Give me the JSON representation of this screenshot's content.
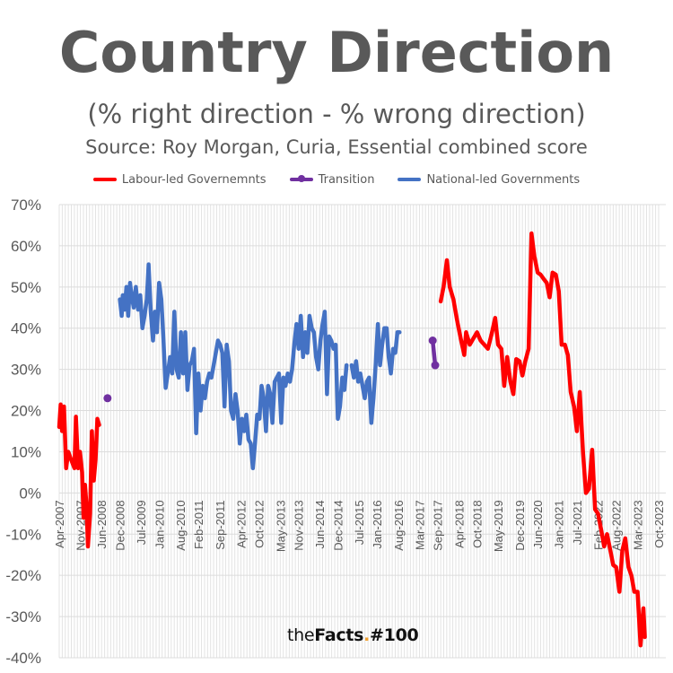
{
  "chart_data": {
    "type": "line",
    "title": "Country Direction",
    "subtitle": "(% right direction - % wrong direction)",
    "source": "Source: Roy Morgan, Curia, Essential combined score",
    "ylim": [
      -40,
      70
    ],
    "yticks": [
      -40,
      -30,
      -20,
      -10,
      0,
      10,
      20,
      30,
      40,
      50,
      60,
      70
    ],
    "ytick_labels": [
      "-40%",
      "-30%",
      "-20%",
      "-10%",
      "0%",
      "10%",
      "20%",
      "30%",
      "40%",
      "50%",
      "60%",
      "70%"
    ],
    "xticks": [
      "Apr-2007",
      "Nov-2007",
      "Jun-2008",
      "Dec-2008",
      "Jul-2009",
      "Jan-2010",
      "Aug-2010",
      "Feb-2011",
      "Sep-2011",
      "Apr-2012",
      "Oct-2012",
      "May-2013",
      "Nov-2013",
      "Jun-2014",
      "Dec-2014",
      "Jul-2015",
      "Jan-2016",
      "Aug-2016",
      "Mar-2017",
      "Sep-2017",
      "Apr-2018",
      "Oct-2018",
      "May-2019",
      "Dec-2019",
      "Jun-2020",
      "Jan-2021",
      "Jul-2021",
      "Feb-2022",
      "Aug-2022",
      "Mar-2023",
      "Oct-2023"
    ],
    "xtick_values": [
      2007.25,
      2007.833,
      2008.417,
      2008.917,
      2009.5,
      2010.0,
      2010.583,
      2011.083,
      2011.667,
      2012.25,
      2012.75,
      2013.333,
      2013.833,
      2014.417,
      2014.917,
      2015.5,
      2016.0,
      2016.583,
      2017.167,
      2017.667,
      2018.25,
      2018.75,
      2019.333,
      2019.917,
      2020.417,
      2021.0,
      2021.5,
      2022.083,
      2022.583,
      2023.167,
      2023.75
    ],
    "grid": true,
    "legend_position": "top",
    "series": [
      {
        "name": "Labour-led Governemnts",
        "color": "#ff0000",
        "marker": false,
        "points": [
          [
            2007.25,
            16
          ],
          [
            2007.29,
            21.5
          ],
          [
            2007.33,
            15
          ],
          [
            2007.38,
            21
          ],
          [
            2007.44,
            6
          ],
          [
            2007.5,
            10
          ],
          [
            2007.58,
            8
          ],
          [
            2007.67,
            6
          ],
          [
            2007.71,
            18.5
          ],
          [
            2007.77,
            6
          ],
          [
            2007.82,
            10
          ],
          [
            2007.88,
            5
          ],
          [
            2007.92,
            -6
          ],
          [
            2007.96,
            2
          ],
          [
            2008.0,
            -3
          ],
          [
            2008.04,
            -13
          ],
          [
            2008.1,
            -5
          ],
          [
            2008.15,
            15
          ],
          [
            2008.2,
            3
          ],
          [
            2008.25,
            8
          ],
          [
            2008.3,
            18
          ],
          [
            2008.35,
            16.5
          ]
        ]
      },
      {
        "name": "Labour-led Governemnts",
        "color": "#ff0000",
        "marker": false,
        "points": [
          [
            2017.75,
            46.5
          ],
          [
            2017.83,
            50
          ],
          [
            2017.92,
            56.5
          ],
          [
            2018.0,
            50
          ],
          [
            2018.1,
            47
          ],
          [
            2018.2,
            42
          ],
          [
            2018.3,
            37.5
          ],
          [
            2018.4,
            33.5
          ],
          [
            2018.45,
            39
          ],
          [
            2018.55,
            36
          ],
          [
            2018.65,
            37.5
          ],
          [
            2018.75,
            39
          ],
          [
            2018.85,
            37
          ],
          [
            2018.95,
            36
          ],
          [
            2019.05,
            35
          ],
          [
            2019.15,
            38.5
          ],
          [
            2019.25,
            42.5
          ],
          [
            2019.33,
            36
          ],
          [
            2019.42,
            35
          ],
          [
            2019.5,
            26
          ],
          [
            2019.58,
            33
          ],
          [
            2019.67,
            27
          ],
          [
            2019.75,
            24
          ],
          [
            2019.83,
            32.5
          ],
          [
            2019.92,
            32
          ],
          [
            2020.0,
            28.5
          ],
          [
            2020.08,
            32
          ],
          [
            2020.17,
            35
          ],
          [
            2020.25,
            63
          ],
          [
            2020.33,
            57.5
          ],
          [
            2020.42,
            53.5
          ],
          [
            2020.5,
            53
          ],
          [
            2020.58,
            52
          ],
          [
            2020.67,
            51
          ],
          [
            2020.75,
            47.5
          ],
          [
            2020.83,
            53.5
          ],
          [
            2020.92,
            53
          ],
          [
            2021.0,
            49
          ],
          [
            2021.08,
            36
          ],
          [
            2021.17,
            36
          ],
          [
            2021.25,
            33.5
          ],
          [
            2021.33,
            24.5
          ],
          [
            2021.42,
            21
          ],
          [
            2021.5,
            15
          ],
          [
            2021.58,
            24.5
          ],
          [
            2021.67,
            9.5
          ],
          [
            2021.75,
            0
          ],
          [
            2021.83,
            1
          ],
          [
            2021.92,
            10.5
          ],
          [
            2022.0,
            -4
          ],
          [
            2022.08,
            -5
          ],
          [
            2022.17,
            -9
          ],
          [
            2022.25,
            -13
          ],
          [
            2022.33,
            -10
          ],
          [
            2022.42,
            -14
          ],
          [
            2022.5,
            -17.5
          ],
          [
            2022.58,
            -18
          ],
          [
            2022.67,
            -24
          ],
          [
            2022.75,
            -14
          ],
          [
            2022.83,
            -11
          ],
          [
            2022.92,
            -18
          ],
          [
            2023.0,
            -20
          ],
          [
            2023.08,
            -24
          ],
          [
            2023.17,
            -24
          ],
          [
            2023.25,
            -37
          ],
          [
            2023.33,
            -28
          ],
          [
            2023.37,
            -35
          ]
        ]
      },
      {
        "name": "Transition",
        "color": "#7030a0",
        "marker": true,
        "points": [
          [
            2008.58,
            23
          ]
        ],
        "points2": [
          [
            2017.53,
            37
          ],
          [
            2017.6,
            31
          ]
        ]
      },
      {
        "name": "National-led Governments",
        "color": "#4472c4",
        "marker": false,
        "points": [
          [
            2008.92,
            47
          ],
          [
            2008.97,
            43
          ],
          [
            2009.0,
            48
          ],
          [
            2009.05,
            44.5
          ],
          [
            2009.1,
            50
          ],
          [
            2009.15,
            43
          ],
          [
            2009.2,
            51
          ],
          [
            2009.25,
            47.5
          ],
          [
            2009.3,
            45
          ],
          [
            2009.36,
            50
          ],
          [
            2009.42,
            44.5
          ],
          [
            2009.48,
            48
          ],
          [
            2009.54,
            40
          ],
          [
            2009.6,
            43
          ],
          [
            2009.66,
            47
          ],
          [
            2009.71,
            55.5
          ],
          [
            2009.77,
            44
          ],
          [
            2009.83,
            37
          ],
          [
            2009.88,
            44
          ],
          [
            2009.94,
            39
          ],
          [
            2010.0,
            51
          ],
          [
            2010.06,
            47
          ],
          [
            2010.12,
            37
          ],
          [
            2010.18,
            25.5
          ],
          [
            2010.24,
            29
          ],
          [
            2010.3,
            33
          ],
          [
            2010.36,
            29
          ],
          [
            2010.42,
            44
          ],
          [
            2010.48,
            30
          ],
          [
            2010.54,
            28
          ],
          [
            2010.6,
            39
          ],
          [
            2010.66,
            29
          ],
          [
            2010.72,
            39
          ],
          [
            2010.78,
            25
          ],
          [
            2010.84,
            31
          ],
          [
            2010.9,
            32
          ],
          [
            2010.96,
            35
          ],
          [
            2011.02,
            14.5
          ],
          [
            2011.08,
            29
          ],
          [
            2011.14,
            20
          ],
          [
            2011.2,
            26
          ],
          [
            2011.26,
            23
          ],
          [
            2011.32,
            27
          ],
          [
            2011.38,
            29
          ],
          [
            2011.44,
            28
          ],
          [
            2011.5,
            31
          ],
          [
            2011.56,
            34
          ],
          [
            2011.62,
            37
          ],
          [
            2011.68,
            36
          ],
          [
            2011.74,
            34
          ],
          [
            2011.8,
            21
          ],
          [
            2011.86,
            36
          ],
          [
            2011.92,
            32
          ],
          [
            2011.98,
            20
          ],
          [
            2012.04,
            18
          ],
          [
            2012.1,
            24
          ],
          [
            2012.16,
            20
          ],
          [
            2012.22,
            12
          ],
          [
            2012.28,
            18
          ],
          [
            2012.34,
            15
          ],
          [
            2012.4,
            19
          ],
          [
            2012.46,
            13
          ],
          [
            2012.52,
            12
          ],
          [
            2012.58,
            6
          ],
          [
            2012.64,
            12
          ],
          [
            2012.7,
            19
          ],
          [
            2012.76,
            18
          ],
          [
            2012.82,
            26
          ],
          [
            2012.88,
            23
          ],
          [
            2012.94,
            15
          ],
          [
            2013.0,
            26
          ],
          [
            2013.06,
            24
          ],
          [
            2013.12,
            17
          ],
          [
            2013.18,
            27
          ],
          [
            2013.24,
            28
          ],
          [
            2013.3,
            29
          ],
          [
            2013.36,
            17
          ],
          [
            2013.42,
            28
          ],
          [
            2013.48,
            26
          ],
          [
            2013.54,
            29
          ],
          [
            2013.6,
            27
          ],
          [
            2013.66,
            30
          ],
          [
            2013.72,
            36
          ],
          [
            2013.78,
            41
          ],
          [
            2013.84,
            35
          ],
          [
            2013.9,
            43
          ],
          [
            2013.96,
            33
          ],
          [
            2014.02,
            39
          ],
          [
            2014.08,
            34
          ],
          [
            2014.14,
            43
          ],
          [
            2014.2,
            40
          ],
          [
            2014.26,
            39
          ],
          [
            2014.32,
            33
          ],
          [
            2014.38,
            30
          ],
          [
            2014.44,
            37
          ],
          [
            2014.5,
            41
          ],
          [
            2014.56,
            44
          ],
          [
            2014.62,
            24
          ],
          [
            2014.68,
            38
          ],
          [
            2014.74,
            37
          ],
          [
            2014.8,
            35
          ],
          [
            2014.86,
            36
          ],
          [
            2014.92,
            18
          ],
          [
            2014.98,
            21
          ],
          [
            2015.04,
            28
          ],
          [
            2015.1,
            25
          ],
          [
            2015.16,
            31
          ]
        ],
        "points2": [
          [
            2015.3,
            31
          ],
          [
            2015.36,
            28
          ],
          [
            2015.42,
            32
          ],
          [
            2015.48,
            27
          ],
          [
            2015.54,
            29
          ],
          [
            2015.6,
            26
          ],
          [
            2015.66,
            23
          ],
          [
            2015.72,
            27
          ],
          [
            2015.78,
            28
          ],
          [
            2015.84,
            17
          ],
          [
            2015.9,
            23
          ],
          [
            2015.96,
            31
          ],
          [
            2016.02,
            41
          ],
          [
            2016.08,
            31
          ],
          [
            2016.14,
            36
          ],
          [
            2016.2,
            40
          ],
          [
            2016.26,
            40
          ],
          [
            2016.32,
            33
          ],
          [
            2016.38,
            29
          ],
          [
            2016.44,
            35
          ],
          [
            2016.5,
            34
          ],
          [
            2016.56,
            39
          ],
          [
            2016.62,
            39
          ]
        ]
      }
    ]
  },
  "legend": [
    {
      "label": "Labour-led Governemnts",
      "color": "#ff0000",
      "marker": false
    },
    {
      "label": "Transition",
      "color": "#7030a0",
      "marker": true
    },
    {
      "label": "National-led Governments",
      "color": "#4472c4",
      "marker": false
    }
  ],
  "brand": {
    "prefix": "the",
    "name": "Facts",
    "dot": ".",
    "tag": "#100"
  }
}
